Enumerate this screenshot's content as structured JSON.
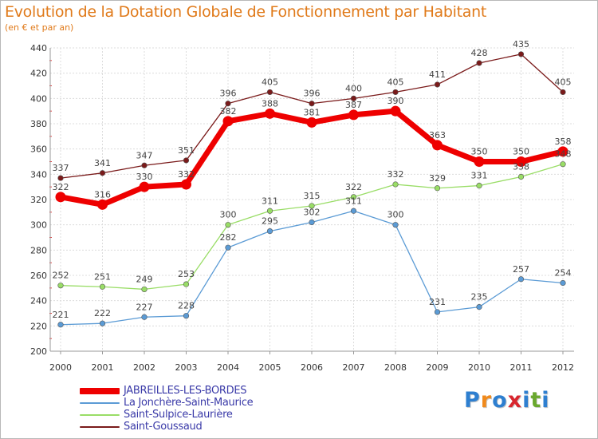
{
  "header": {
    "title": "Evolution de la Dotation Globale de Fonctionnement par Habitant",
    "subtitle": "(en € et par an)"
  },
  "logo": {
    "text": "Proxiti",
    "letter_colors": [
      "#2e7fd0",
      "#f08a1c",
      "#2e7fd0",
      "#d8262e",
      "#2e7fd0",
      "#6aa82e",
      "#2e7fd0"
    ]
  },
  "chart_data": {
    "type": "line",
    "title": "Evolution de la Dotation Globale de Fonctionnement par Habitant",
    "subtitle": "(en € et par an)",
    "xlabel": "",
    "ylabel": "",
    "x": [
      "2000",
      "2001",
      "2002",
      "2003",
      "2004",
      "2005",
      "2006",
      "2007",
      "2008",
      "2009",
      "2010",
      "2011",
      "2012"
    ],
    "ylim": [
      200,
      440
    ],
    "yticks": [
      200,
      220,
      240,
      260,
      280,
      300,
      320,
      340,
      360,
      380,
      400,
      420,
      440
    ],
    "grid": true,
    "legend_position": "bottom-left",
    "series": [
      {
        "name": "JABREILLES-LES-BORDES",
        "color": "#ee0000",
        "emphasis": true,
        "values": [
          322,
          316,
          330,
          332,
          382,
          388,
          381,
          387,
          390,
          363,
          350,
          350,
          358
        ]
      },
      {
        "name": "La Jonchère-Saint-Maurice",
        "color": "#5b9bd5",
        "emphasis": false,
        "values": [
          221,
          222,
          227,
          228,
          282,
          295,
          302,
          311,
          300,
          231,
          235,
          257,
          254
        ]
      },
      {
        "name": "Saint-Sulpice-Laurière",
        "color": "#99dd66",
        "emphasis": false,
        "values": [
          252,
          251,
          249,
          253,
          300,
          311,
          315,
          322,
          332,
          329,
          331,
          338,
          348
        ]
      },
      {
        "name": "Saint-Goussaud",
        "color": "#7a1a1a",
        "emphasis": false,
        "values": [
          337,
          341,
          347,
          351,
          396,
          405,
          396,
          400,
          405,
          411,
          428,
          435,
          405
        ]
      }
    ]
  }
}
